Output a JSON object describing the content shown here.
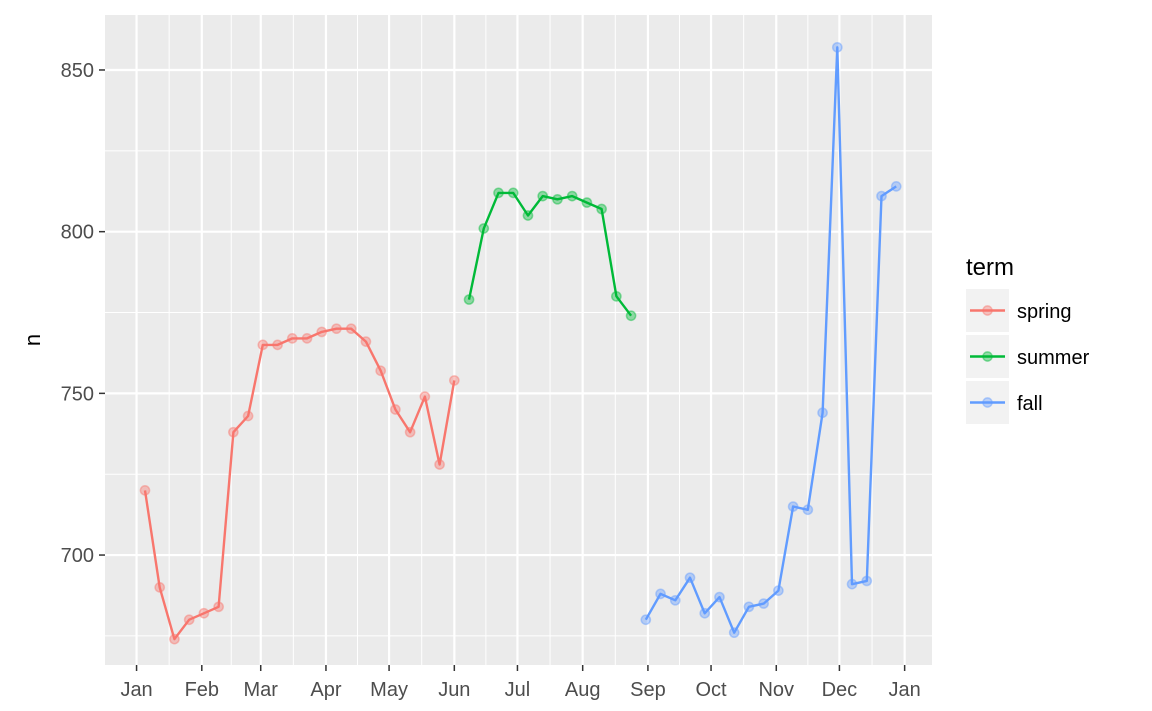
{
  "chart_data": {
    "type": "line",
    "ylabel": "n",
    "xlabel": "",
    "legend": {
      "title": "term",
      "placement": "right"
    },
    "x_ticks": [
      "Jan",
      "Feb",
      "Mar",
      "Apr",
      "May",
      "Jun",
      "Jul",
      "Aug",
      "Sep",
      "Oct",
      "Nov",
      "Dec",
      "Jan"
    ],
    "x_tick_dates": [
      "2018-01-01",
      "2018-02-01",
      "2018-03-01",
      "2018-04-01",
      "2018-05-01",
      "2018-06-01",
      "2018-07-01",
      "2018-08-01",
      "2018-09-01",
      "2018-10-01",
      "2018-11-01",
      "2018-12-01",
      "2019-01-01"
    ],
    "xlim": [
      "2017-12-17",
      "2019-01-14"
    ],
    "y_ticks": [
      700,
      750,
      800,
      850
    ],
    "ylim": [
      666,
      867
    ],
    "grid": true,
    "series": [
      {
        "name": "spring",
        "color": "#F8766D",
        "points": [
          [
            "2018-01-05",
            720
          ],
          [
            "2018-01-12",
            690
          ],
          [
            "2018-01-19",
            674
          ],
          [
            "2018-01-26",
            680
          ],
          [
            "2018-02-02",
            682
          ],
          [
            "2018-02-09",
            684
          ],
          [
            "2018-02-16",
            738
          ],
          [
            "2018-02-23",
            743
          ],
          [
            "2018-03-02",
            765
          ],
          [
            "2018-03-09",
            765
          ],
          [
            "2018-03-16",
            767
          ],
          [
            "2018-03-23",
            767
          ],
          [
            "2018-03-30",
            769
          ],
          [
            "2018-04-06",
            770
          ],
          [
            "2018-04-13",
            770
          ],
          [
            "2018-04-20",
            766
          ],
          [
            "2018-04-27",
            757
          ],
          [
            "2018-05-04",
            745
          ],
          [
            "2018-05-11",
            738
          ],
          [
            "2018-05-18",
            749
          ],
          [
            "2018-05-25",
            728
          ],
          [
            "2018-06-01",
            754
          ]
        ]
      },
      {
        "name": "summer",
        "color": "#00BA38",
        "points": [
          [
            "2018-06-08",
            779
          ],
          [
            "2018-06-15",
            801
          ],
          [
            "2018-06-22",
            812
          ],
          [
            "2018-06-29",
            812
          ],
          [
            "2018-07-06",
            805
          ],
          [
            "2018-07-13",
            811
          ],
          [
            "2018-07-20",
            810
          ],
          [
            "2018-07-27",
            811
          ],
          [
            "2018-08-03",
            809
          ],
          [
            "2018-08-10",
            807
          ],
          [
            "2018-08-17",
            780
          ],
          [
            "2018-08-24",
            774
          ]
        ]
      },
      {
        "name": "fall",
        "color": "#619CFF",
        "points": [
          [
            "2018-08-31",
            680
          ],
          [
            "2018-09-07",
            688
          ],
          [
            "2018-09-14",
            686
          ],
          [
            "2018-09-21",
            693
          ],
          [
            "2018-09-28",
            682
          ],
          [
            "2018-10-05",
            687
          ],
          [
            "2018-10-12",
            676
          ],
          [
            "2018-10-19",
            684
          ],
          [
            "2018-10-26",
            685
          ],
          [
            "2018-11-02",
            689
          ],
          [
            "2018-11-09",
            715
          ],
          [
            "2018-11-16",
            714
          ],
          [
            "2018-11-23",
            744
          ],
          [
            "2018-11-30",
            857
          ],
          [
            "2018-12-07",
            691
          ],
          [
            "2018-12-14",
            692
          ],
          [
            "2018-12-21",
            811
          ],
          [
            "2018-12-28",
            814
          ]
        ]
      }
    ]
  }
}
